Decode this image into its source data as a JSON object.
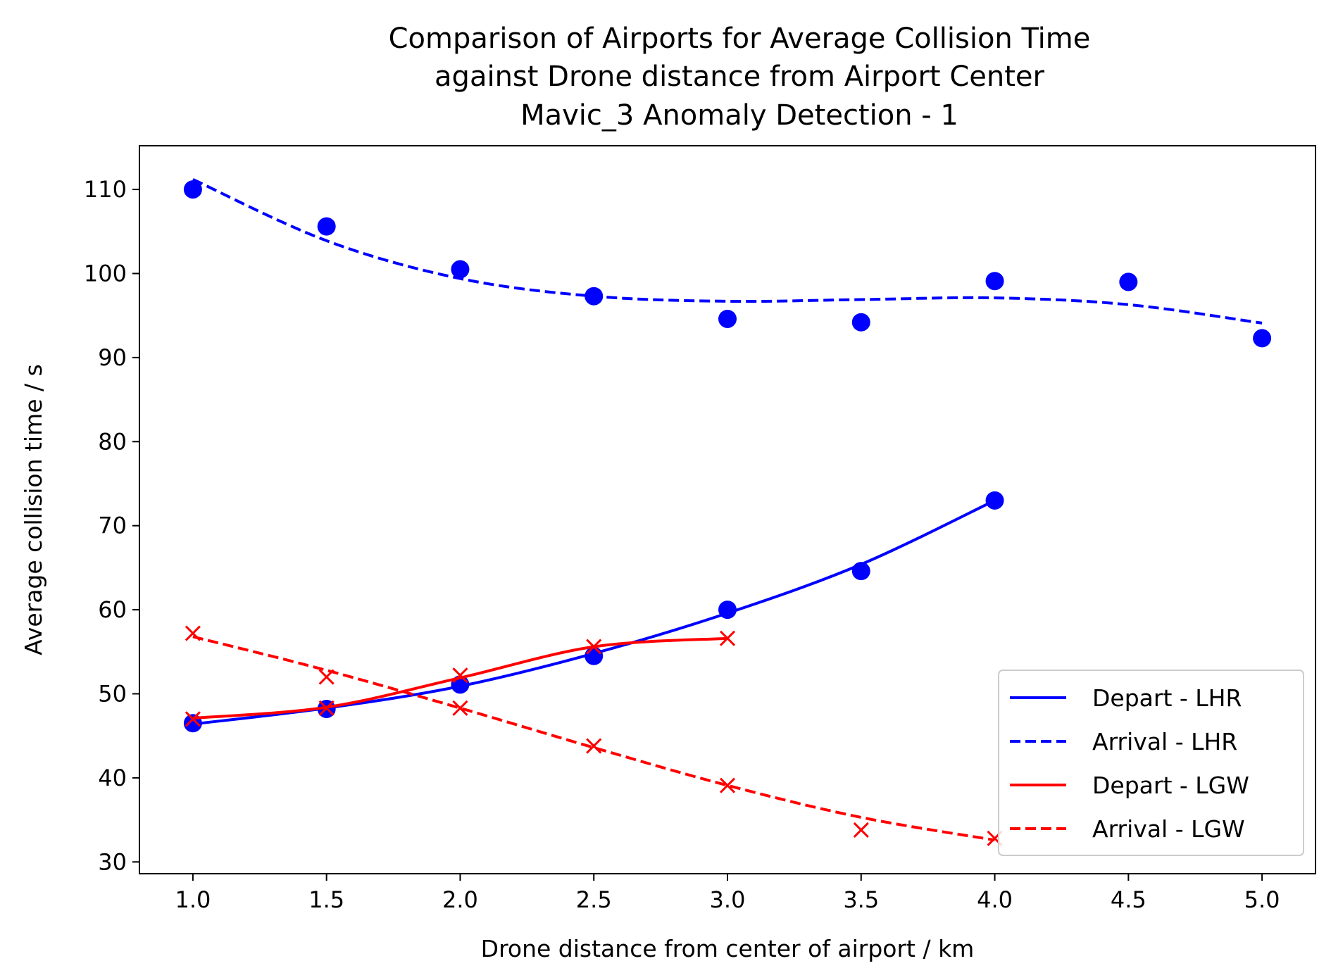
{
  "chart_data": {
    "type": "line",
    "title": [
      "Comparison of Airports for Average Collision Time",
      "against Drone distance from Airport Center",
      "Mavic_3 Anomaly Detection - 1"
    ],
    "xlabel": "Drone distance from center of airport / km",
    "ylabel": "Average collision time / s",
    "xlim": [
      0.8,
      5.2
    ],
    "ylim": [
      28.6,
      115.2
    ],
    "xticks": [
      1.0,
      1.5,
      2.0,
      2.5,
      3.0,
      3.5,
      4.0,
      4.5,
      5.0
    ],
    "xtick_labels": [
      "1.0",
      "1.5",
      "2.0",
      "2.5",
      "3.0",
      "3.5",
      "4.0",
      "4.5",
      "5.0"
    ],
    "yticks": [
      30,
      40,
      50,
      60,
      70,
      80,
      90,
      100,
      110
    ],
    "ytick_labels": [
      "30",
      "40",
      "50",
      "60",
      "70",
      "80",
      "90",
      "100",
      "110"
    ],
    "grid": false,
    "legend_position": "bottom-right",
    "series": [
      {
        "name": "Depart - LHR",
        "color": "#0000ff",
        "line_style": "solid",
        "marker": "circle",
        "points_x": [
          1.0,
          1.5,
          2.0,
          2.5,
          3.0,
          3.5,
          4.0
        ],
        "points_y": [
          46.5,
          48.2,
          51.1,
          54.5,
          60.0,
          64.6,
          73.0
        ],
        "fit_x": [
          1.0,
          1.5,
          2.0,
          2.5,
          3.0,
          3.5,
          4.0
        ],
        "fit_y": [
          46.4,
          48.3,
          50.9,
          54.8,
          59.6,
          65.4,
          73.0
        ]
      },
      {
        "name": "Arrival - LHR",
        "color": "#0000ff",
        "line_style": "dashed",
        "marker": "circle",
        "points_x": [
          1.0,
          1.5,
          2.0,
          2.5,
          3.0,
          3.5,
          4.0,
          4.5,
          5.0
        ],
        "points_y": [
          110.0,
          105.6,
          100.5,
          97.3,
          94.6,
          94.2,
          99.1,
          99.0,
          92.3
        ],
        "fit_x": [
          1.0,
          1.5,
          2.0,
          2.5,
          3.0,
          3.5,
          4.0,
          4.5,
          5.0
        ],
        "fit_y": [
          111.2,
          103.9,
          99.4,
          97.3,
          96.7,
          96.9,
          97.1,
          96.3,
          94.1
        ]
      },
      {
        "name": "Depart - LGW",
        "color": "#ff0000",
        "line_style": "solid",
        "marker": "x",
        "points_x": [
          1.0,
          1.5,
          2.0,
          2.5,
          3.0
        ],
        "points_y": [
          47.0,
          48.3,
          52.2,
          55.6,
          56.6
        ],
        "fit_x": [
          1.0,
          1.5,
          2.0,
          2.5,
          3.0
        ],
        "fit_y": [
          47.1,
          48.4,
          51.9,
          55.6,
          56.6
        ]
      },
      {
        "name": "Arrival - LGW",
        "color": "#ff0000",
        "line_style": "dashed",
        "marker": "x",
        "points_x": [
          1.0,
          1.5,
          2.0,
          2.5,
          3.0,
          3.5,
          4.0
        ],
        "points_y": [
          57.2,
          52.0,
          48.3,
          43.8,
          39.1,
          33.8,
          32.8
        ],
        "fit_x": [
          1.0,
          1.5,
          2.0,
          2.5,
          3.0,
          3.5,
          4.0
        ],
        "fit_y": [
          56.8,
          52.8,
          48.3,
          43.6,
          39.1,
          35.3,
          32.6
        ]
      }
    ]
  }
}
